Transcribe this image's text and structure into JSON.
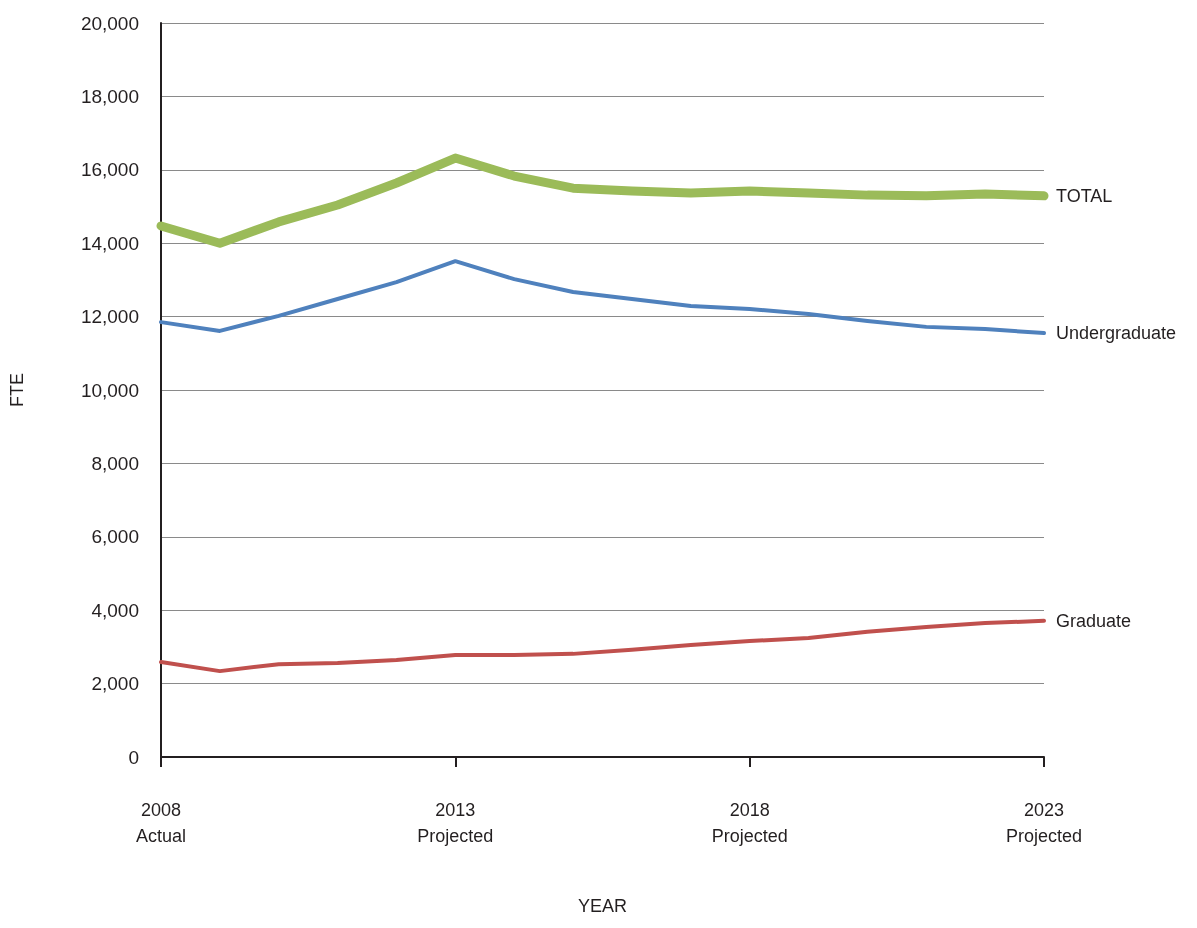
{
  "chart_data": {
    "type": "line",
    "xlabel": "YEAR",
    "ylabel": "FTE",
    "categories": [
      "2008\nActual",
      null,
      null,
      null,
      null,
      "2013\nProjected",
      null,
      null,
      null,
      null,
      "2018\nProjected",
      null,
      null,
      null,
      null,
      "2023\nProjected"
    ],
    "series": [
      {
        "name": "TOTAL",
        "color": "#9bbb59",
        "values": [
          14470,
          14000,
          14580,
          15040,
          15640,
          16320,
          15830,
          15500,
          15420,
          15370,
          15420,
          15370,
          15310,
          15290,
          15340,
          15290
        ]
      },
      {
        "name": "Undergraduate",
        "color": "#4f81bd",
        "values": [
          11850,
          11610,
          12020,
          12480,
          12940,
          13510,
          13020,
          12670,
          12480,
          12290,
          12210,
          12070,
          11880,
          11720,
          11660,
          11550
        ]
      },
      {
        "name": "Graduate",
        "color": "#c0504d",
        "values": [
          2590,
          2340,
          2530,
          2560,
          2640,
          2780,
          2780,
          2810,
          2920,
          3050,
          3160,
          3240,
          3410,
          3540,
          3650,
          3710
        ]
      }
    ],
    "ylim": [
      0,
      20000
    ],
    "yticks": [
      0,
      {
        "value": 2000,
        "label": "2,000"
      },
      {
        "value": 4000,
        "label": "4,000"
      },
      {
        "value": 6000,
        "label": "6,000"
      },
      {
        "value": 8000,
        "label": "8,000"
      },
      {
        "value": 10000,
        "label": "10,000"
      },
      {
        "value": 12000,
        "label": "12,000"
      },
      {
        "value": 14000,
        "label": "14,000"
      },
      {
        "value": 16000,
        "label": "16,000"
      },
      {
        "value": 18000,
        "label": "18,000"
      },
      {
        "value": 20000,
        "label": "20,000"
      }
    ],
    "grid": "y",
    "legend": false,
    "marker": "none",
    "line_style": "solid"
  }
}
